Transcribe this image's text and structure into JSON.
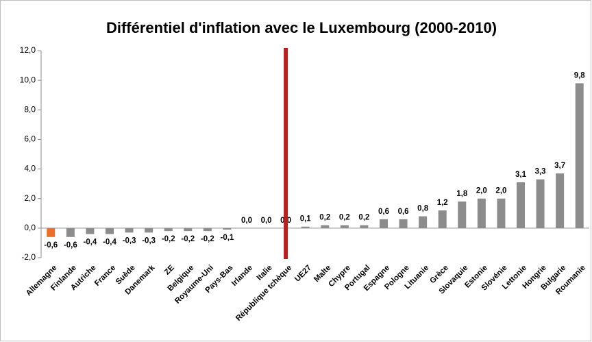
{
  "chart_data": {
    "type": "bar",
    "title": "Différentiel d'inflation avec le Luxembourg (2000-2010)",
    "categories": [
      "Allemagne",
      "Finlande",
      "Autriche",
      "France",
      "Suède",
      "Danemark",
      "ZE",
      "Belgique",
      "Royaume-Uni",
      "Pays-Bas",
      "Irlande",
      "Italie",
      "République tchèque",
      "UE27",
      "Malte",
      "Chypre",
      "Portugal",
      "Espagne",
      "Pologne",
      "Lituanie",
      "Grèce",
      "Slovaquie",
      "Estonie",
      "Slovénie",
      "Lettonie",
      "Hongrie",
      "Bulgarie",
      "Roumanie"
    ],
    "values": [
      -0.6,
      -0.6,
      -0.4,
      -0.4,
      -0.3,
      -0.3,
      -0.2,
      -0.2,
      -0.2,
      -0.1,
      0.0,
      0.0,
      0.0,
      0.1,
      0.2,
      0.2,
      0.2,
      0.6,
      0.6,
      0.8,
      1.2,
      1.8,
      2.0,
      2.0,
      3.1,
      3.3,
      3.7,
      9.8
    ],
    "value_labels": [
      "-0,6",
      "-0,6",
      "-0,4",
      "-0,4",
      "-0,3",
      "-0,3",
      "-0,2",
      "-0,2",
      "-0,2",
      "-0,1",
      "0,0",
      "0,0",
      "0,0",
      "0,1",
      "0,2",
      "0,2",
      "0,2",
      "0,6",
      "0,6",
      "0,8",
      "1,2",
      "1,8",
      "2,0",
      "2,0",
      "3,1",
      "3,3",
      "3,7",
      "9,8"
    ],
    "colors": [
      "#e8702a",
      "#8c8c8c",
      "#8c8c8c",
      "#8c8c8c",
      "#8c8c8c",
      "#8c8c8c",
      "#8c8c8c",
      "#8c8c8c",
      "#8c8c8c",
      "#8c8c8c",
      "#8c8c8c",
      "#8c8c8c",
      "#8c8c8c",
      "#8c8c8c",
      "#8c8c8c",
      "#8c8c8c",
      "#8c8c8c",
      "#8c8c8c",
      "#8c8c8c",
      "#8c8c8c",
      "#8c8c8c",
      "#8c8c8c",
      "#8c8c8c",
      "#8c8c8c",
      "#8c8c8c",
      "#8c8c8c",
      "#8c8c8c",
      "#8c8c8c"
    ],
    "reference_line": {
      "category": "République tchèque",
      "color": "#b2201f"
    },
    "ylim": [
      -2,
      12
    ],
    "yticks": [
      {
        "value": -2,
        "label": "-2,0"
      },
      {
        "value": 0,
        "label": "0,0"
      },
      {
        "value": 2,
        "label": "2,0"
      },
      {
        "value": 4,
        "label": "4,0"
      },
      {
        "value": 6,
        "label": "6,0"
      },
      {
        "value": 8,
        "label": "8,0"
      },
      {
        "value": 10,
        "label": "10,0"
      },
      {
        "value": 12,
        "label": "12,0"
      }
    ],
    "grid": false
  }
}
